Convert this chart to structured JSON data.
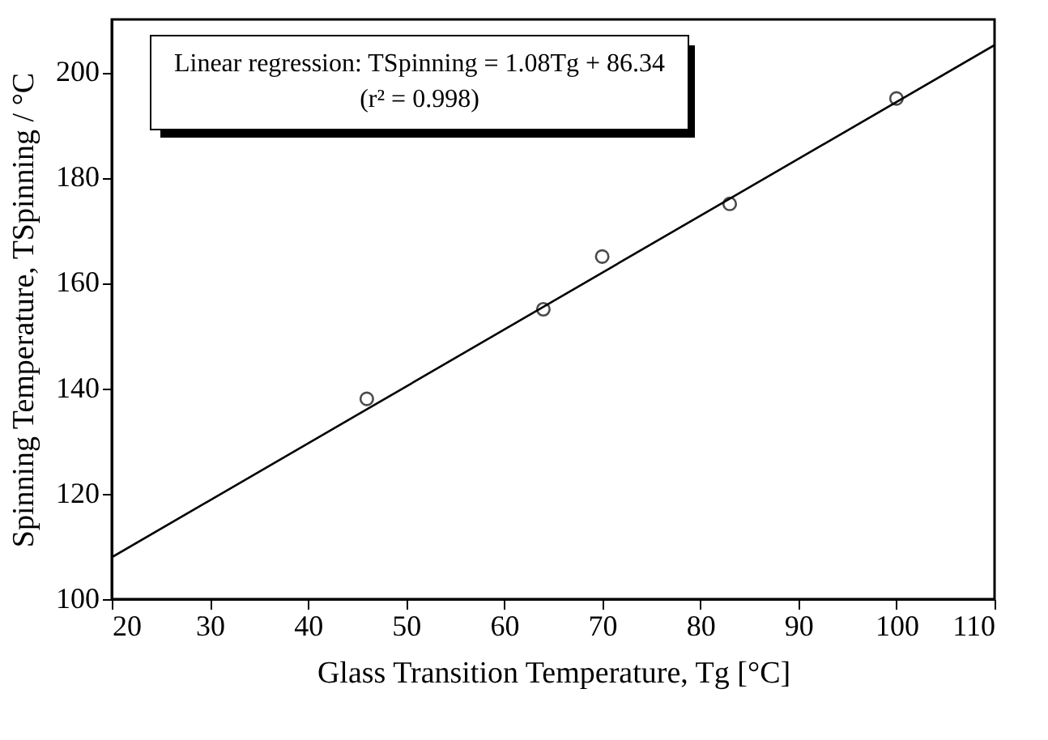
{
  "chart_data": {
    "type": "scatter",
    "xlabel": "Glass Transition Temperature, Tg [°C]",
    "ylabel": "Spinning Temperature, TSpinning / °C",
    "annotations": [
      "Linear regression: TSpinning = 1.08Tg + 86.34",
      "(r² = 0.998)"
    ],
    "xlim": [
      20,
      110
    ],
    "xticks": [
      20,
      30,
      40,
      50,
      60,
      70,
      80,
      90,
      100,
      110
    ],
    "ylim": [
      100,
      210
    ],
    "yticks": [
      100,
      120,
      140,
      160,
      180,
      200
    ],
    "series": [
      {
        "color": "#000000",
        "marker": "circle",
        "x": [
          46,
          64,
          70,
          83,
          100
        ],
        "values": [
          138,
          155,
          165,
          175,
          195
        ]
      },
      {
        "type": "line",
        "color": "#000000",
        "line_style": "solid",
        "marker": "none",
        "x": [
          20,
          110
        ],
        "values": [
          107.94,
          205.14
        ]
      }
    ]
  }
}
